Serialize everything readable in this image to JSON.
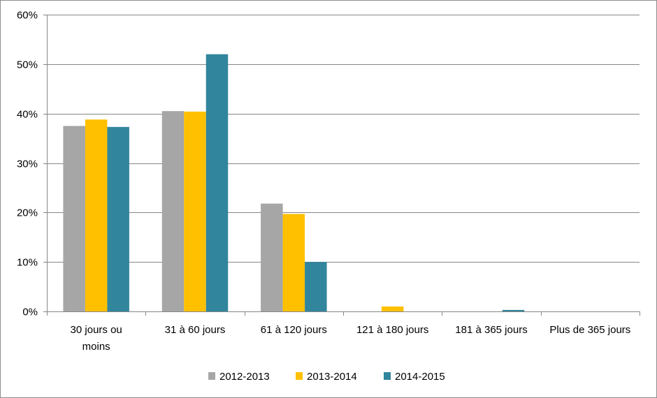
{
  "chart_data": {
    "type": "bar",
    "categories": [
      [
        "30 jours ou",
        "moins"
      ],
      [
        "31 à 60 jours"
      ],
      [
        "61 à 120 jours"
      ],
      [
        "121 à 180 jours"
      ],
      [
        "181 à 365 jours"
      ],
      [
        "Plus de 365 jours"
      ]
    ],
    "series": [
      {
        "name": "2012-2013",
        "color": "#a6a6a6",
        "values": [
          37.5,
          40.5,
          21.8,
          0,
          0,
          0
        ]
      },
      {
        "name": "2013-2014",
        "color": "#ffc000",
        "values": [
          38.8,
          40.4,
          19.7,
          1.0,
          0,
          0
        ]
      },
      {
        "name": "2014-2015",
        "color": "#31859c",
        "values": [
          37.3,
          52.0,
          10.0,
          0,
          0.3,
          0
        ]
      }
    ],
    "y_ticks": [
      "0%",
      "10%",
      "20%",
      "30%",
      "40%",
      "50%",
      "60%"
    ],
    "ylim": [
      0,
      60
    ],
    "grid": true,
    "legend_position": "bottom",
    "gridline_color": "#868686"
  }
}
